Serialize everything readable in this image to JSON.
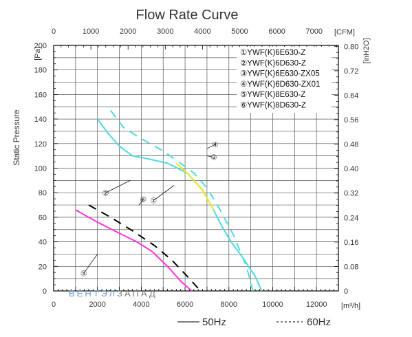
{
  "chart_data": {
    "type": "line",
    "title": "Flow Rate Curve",
    "ylabel": "Static Pressure",
    "y_unit_left": "[Pa]",
    "y_unit_right": "[inH2O]",
    "x_unit_bottom": "[m³/h]",
    "x_unit_top": "[CFM]",
    "xlim": [
      0,
      13000
    ],
    "ylim": [
      0,
      200
    ],
    "x_ticks": [
      "0",
      "2000",
      "4000",
      "6000",
      "8000",
      "10000",
      "12000"
    ],
    "x_top_ticks": [
      "0",
      "1000",
      "2000",
      "3000",
      "4000",
      "5000",
      "6000",
      "7000"
    ],
    "y_ticks": [
      "0",
      "20",
      "40",
      "60",
      "80",
      "100",
      "120",
      "140",
      "160",
      "180",
      "200"
    ],
    "y_right_ticks": [
      "0",
      "0.08",
      "0.16",
      "0.24",
      "0.32",
      "0.40",
      "0.48",
      "0.56",
      "0.64",
      "0.72",
      "0.80"
    ],
    "grid": true,
    "legend_placement": "top-right",
    "legend": [
      {
        "marker": "①",
        "label": "YWF(K)6E630-Z"
      },
      {
        "marker": "②",
        "label": "YWF(K)6D630-Z"
      },
      {
        "marker": "③",
        "label": "YWF(K)6E630-ZX05"
      },
      {
        "marker": "④",
        "label": "YWF(K)6D630-ZX01"
      },
      {
        "marker": "⑤",
        "label": "YWF(K)8E630-Z"
      },
      {
        "marker": "⑥",
        "label": "YWF(K)8D630-Z"
      }
    ],
    "line_styles": [
      {
        "label": "50Hz",
        "dash": "solid"
      },
      {
        "label": "60Hz",
        "dash": "dashed"
      }
    ],
    "series": [
      {
        "freq": "50Hz",
        "color": "#4dd9e0",
        "x": [
          2000,
          2500,
          3000,
          3600,
          4200,
          5200,
          6100,
          6800,
          7300,
          7700,
          8100,
          8600,
          9200,
          9500
        ],
        "y": [
          140,
          128,
          118,
          110,
          108,
          104,
          96,
          82,
          66,
          52,
          40,
          28,
          12,
          0
        ]
      },
      {
        "freq": "50Hz",
        "color": "#e8e820",
        "x": [
          5600,
          6100,
          6800,
          7300
        ],
        "y": [
          104,
          96,
          82,
          66
        ]
      },
      {
        "freq": "50Hz",
        "color": "#ff33dd",
        "x": [
          1000,
          2000,
          3000,
          3800,
          4500,
          5200,
          5800,
          6300
        ],
        "y": [
          66,
          56,
          47,
          40,
          32,
          20,
          8,
          0
        ]
      },
      {
        "freq": "60Hz",
        "color": "#4dd9e0",
        "x": [
          2600,
          3200,
          4000,
          5000,
          5800,
          6400,
          7000,
          7600,
          8200,
          8800,
          9100
        ],
        "y": [
          147,
          133,
          124,
          114,
          104,
          96,
          84,
          66,
          46,
          20,
          0
        ]
      },
      {
        "freq": "60Hz",
        "color": "#000000",
        "x": [
          1600,
          2600,
          3600,
          4600,
          5400,
          6200,
          6700
        ],
        "y": [
          70,
          60,
          49,
          37,
          25,
          10,
          0
        ]
      }
    ],
    "annotations": [
      {
        "marker": "①",
        "x": 5500,
        "y": 86
      },
      {
        "marker": "②",
        "x": 3500,
        "y": 90
      },
      {
        "marker": "③",
        "x": 7000,
        "y": 110
      },
      {
        "marker": "④",
        "x": 7000,
        "y": 116
      },
      {
        "marker": "⑤",
        "x": 2000,
        "y": 30
      },
      {
        "marker": "⑥",
        "x": 3900,
        "y": 70
      }
    ]
  },
  "watermark": "ВЕНТЭЛ ЗАПАД"
}
